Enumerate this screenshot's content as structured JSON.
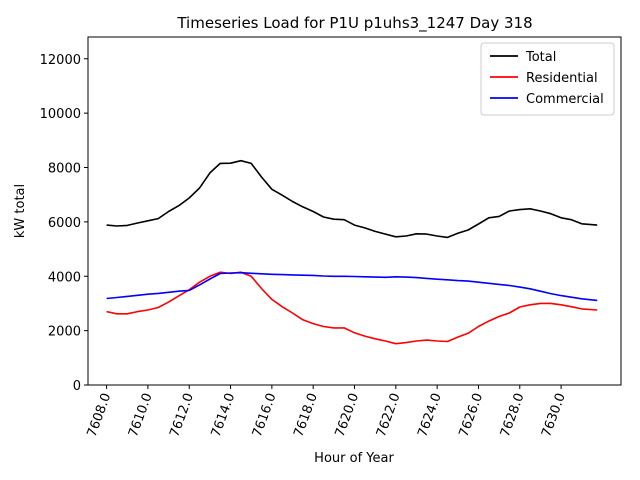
{
  "chart_data": {
    "type": "line",
    "title": "Timeseries Load for P1U p1uhs3_1247  Day 318",
    "xlabel": "Hour of Year",
    "ylabel": "kW total",
    "xlim": [
      7607.1,
      7632.9
    ],
    "ylim": [
      0,
      12800
    ],
    "xticks": [
      7608,
      7610,
      7612,
      7614,
      7616,
      7618,
      7620,
      7622,
      7624,
      7626,
      7628,
      7630
    ],
    "xtick_labels": [
      "7608.0",
      "7610.0",
      "7612.0",
      "7614.0",
      "7616.0",
      "7618.0",
      "7620.0",
      "7622.0",
      "7624.0",
      "7626.0",
      "7628.0",
      "7630.0"
    ],
    "yticks": [
      0,
      2000,
      4000,
      6000,
      8000,
      10000,
      12000
    ],
    "ytick_labels": [
      "0",
      "2000",
      "4000",
      "6000",
      "8000",
      "10000",
      "12000"
    ],
    "legend_position": "top-right",
    "x": [
      7608.0,
      7608.5,
      7609.0,
      7609.5,
      7610.0,
      7610.5,
      7611.0,
      7611.5,
      7612.0,
      7612.5,
      7613.0,
      7613.5,
      7614.0,
      7614.5,
      7615.0,
      7615.5,
      7616.0,
      7616.5,
      7617.0,
      7617.5,
      7618.0,
      7618.5,
      7619.0,
      7619.5,
      7620.0,
      7620.5,
      7621.0,
      7621.5,
      7622.0,
      7622.5,
      7623.0,
      7623.5,
      7624.0,
      7624.5,
      7625.0,
      7625.5,
      7626.0,
      7626.5,
      7627.0,
      7627.5,
      7628.0,
      7628.5,
      7629.0,
      7629.5,
      7630.0,
      7630.5,
      7631.0,
      7631.75
    ],
    "series": [
      {
        "name": "Total",
        "color": "#000000",
        "values": [
          5880,
          5850,
          5870,
          5960,
          6040,
          6120,
          6380,
          6600,
          6880,
          7250,
          7800,
          8150,
          8160,
          8250,
          8150,
          7650,
          7200,
          6980,
          6750,
          6550,
          6380,
          6180,
          6100,
          6080,
          5880,
          5780,
          5650,
          5550,
          5450,
          5480,
          5560,
          5550,
          5480,
          5430,
          5580,
          5700,
          5920,
          6150,
          6200,
          6400,
          6450,
          6480,
          6400,
          6300,
          6150,
          6080,
          5930,
          5880
        ]
      },
      {
        "name": "Residential",
        "color": "#ff0000",
        "values": [
          2700,
          2620,
          2620,
          2700,
          2760,
          2850,
          3050,
          3280,
          3500,
          3780,
          4000,
          4150,
          4100,
          4150,
          4000,
          3550,
          3150,
          2880,
          2650,
          2400,
          2260,
          2150,
          2100,
          2100,
          1920,
          1800,
          1700,
          1620,
          1520,
          1560,
          1620,
          1650,
          1620,
          1600,
          1760,
          1900,
          2150,
          2350,
          2520,
          2650,
          2870,
          2950,
          3000,
          3000,
          2950,
          2880,
          2800,
          2760
        ]
      },
      {
        "name": "Commercial",
        "color": "#0000ff",
        "values": [
          3180,
          3220,
          3260,
          3300,
          3340,
          3370,
          3410,
          3450,
          3480,
          3680,
          3900,
          4100,
          4120,
          4130,
          4110,
          4090,
          4070,
          4060,
          4050,
          4040,
          4030,
          4010,
          4000,
          4000,
          3990,
          3980,
          3970,
          3960,
          3980,
          3970,
          3950,
          3920,
          3890,
          3870,
          3840,
          3820,
          3780,
          3740,
          3700,
          3660,
          3600,
          3540,
          3450,
          3360,
          3290,
          3230,
          3170,
          3110
        ]
      }
    ]
  }
}
